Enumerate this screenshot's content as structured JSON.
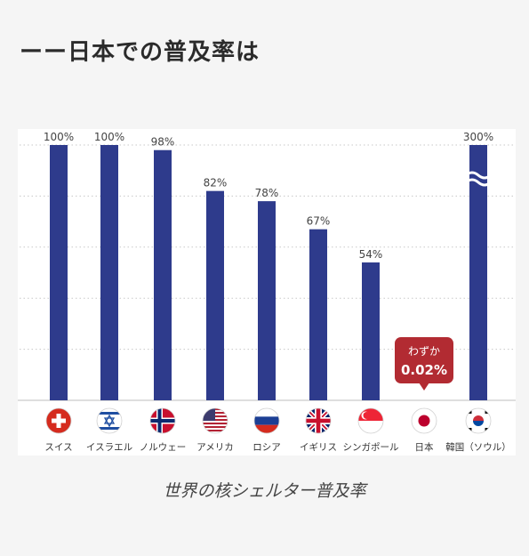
{
  "page": {
    "heading": "ーー日本での普及率は",
    "caption": "世界の核シェルター普及率"
  },
  "colors": {
    "bar": "#2e3b8c",
    "callout": "#b22b32",
    "label": "#444444",
    "gridline": "#c8c8c8"
  },
  "chart_data": {
    "type": "bar",
    "categories": [
      "スイス",
      "イスラエル",
      "ノルウェー",
      "アメリカ",
      "ロシア",
      "イギリス",
      "シンガポール",
      "日本",
      "韓国（ソウル）"
    ],
    "values": [
      100,
      100,
      98,
      82,
      78,
      67,
      54,
      0.02,
      300
    ],
    "value_labels": [
      "100%",
      "100%",
      "98%",
      "82%",
      "78%",
      "67%",
      "54%",
      "0.02%",
      "300%"
    ],
    "value_unit": "%",
    "y_axis": "hidden",
    "ylim": [
      0,
      100
    ],
    "axis_break_on": "韓国（ソウル）",
    "grid": true,
    "grid_style": "dotted",
    "legend": "none",
    "flags": [
      "switzerland-flag-icon",
      "israel-flag-icon",
      "norway-flag-icon",
      "usa-flag-icon",
      "russia-flag-icon",
      "uk-flag-icon",
      "singapore-flag-icon",
      "japan-flag-icon",
      "korea-flag-icon"
    ],
    "annotation": {
      "category": "日本",
      "line1": "わずか",
      "line2": "0.02%"
    }
  }
}
